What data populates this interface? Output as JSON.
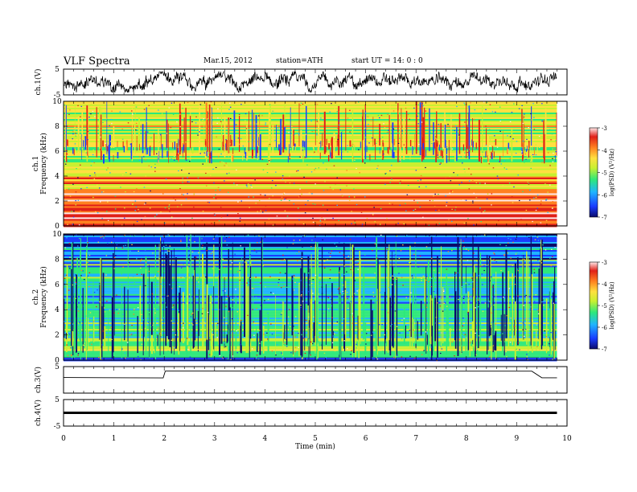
{
  "header": {
    "title": "VLF  Spectra",
    "date": "Mar.15, 2012",
    "station": "station=ATH",
    "start": "start  UT  =    14: 0  : 0"
  },
  "chart_data": [
    {
      "type": "line",
      "panel": "ch1-waveform",
      "ylabel": "ch.1(V)",
      "ylim": [
        -5,
        5
      ],
      "yticks": [
        "5",
        "-5"
      ],
      "x_range_min": [
        0,
        9.8
      ],
      "description_series": "dense noisy black waveform oscillating about 0 V with amplitude roughly 3 V",
      "series": [
        {
          "values_envelope": [
            -3,
            3
          ]
        }
      ]
    },
    {
      "type": "heatmap",
      "panel": "ch1-spectrogram",
      "ylabel": "ch.1\nFrequency (kHz)",
      "ylabel_channel": "ch.1",
      "ylabel_freq": "Frequency (kHz)",
      "ylim": [
        0,
        10
      ],
      "yticks": [
        "0",
        "2",
        "4",
        "6",
        "8",
        "10"
      ],
      "colorbar": {
        "label": "log(PSD) (V²/Hz)",
        "ticks": [
          "-3",
          "-4",
          "-5",
          "-6",
          "-7"
        ],
        "range": [
          -7,
          -3
        ]
      },
      "bands": [
        {
          "from": 0,
          "to": 0.3,
          "level": -3.2
        },
        {
          "from": 0.3,
          "to": 1.2,
          "level": -3.5
        },
        {
          "from": 1.2,
          "to": 3.0,
          "level": -3.6
        },
        {
          "from": 3.0,
          "to": 4.0,
          "level": -4.3
        },
        {
          "from": 4.0,
          "to": 5.0,
          "level": -4.6
        },
        {
          "from": 5.0,
          "to": 6.0,
          "level": -4.9
        },
        {
          "from": 6.0,
          "to": 8.0,
          "level": -5.0
        },
        {
          "from": 8.0,
          "to": 10.0,
          "level": -4.8
        }
      ]
    },
    {
      "type": "heatmap",
      "panel": "ch2-spectrogram",
      "ylabel_channel": "ch.2",
      "ylabel_freq": "Frequency (kHz)",
      "ylim": [
        0,
        10
      ],
      "yticks": [
        "0",
        "2",
        "4",
        "6",
        "8",
        "10"
      ],
      "colorbar": {
        "label": "log(PSD) (V²/Hz)",
        "ticks": [
          "-3",
          "-4",
          "-5",
          "-6",
          "-7"
        ],
        "range": [
          -7,
          -3
        ]
      },
      "bands": [
        {
          "from": 0,
          "to": 0.3,
          "level": -7.0
        },
        {
          "from": 0.3,
          "to": 2.0,
          "level": -5.2
        },
        {
          "from": 2.0,
          "to": 4.0,
          "level": -5.4
        },
        {
          "from": 4.0,
          "to": 6.0,
          "level": -5.9
        },
        {
          "from": 6.0,
          "to": 8.0,
          "level": -5.7
        },
        {
          "from": 8.0,
          "to": 10.0,
          "level": -6.2
        }
      ]
    },
    {
      "type": "line",
      "panel": "ch3-waveform",
      "ylabel": "ch.3(V)",
      "ylim": [
        -5,
        5
      ],
      "yticks": [
        "5"
      ],
      "x": [
        0,
        1.98,
        2.02,
        9.3,
        9.5,
        9.8
      ],
      "values": [
        0.8,
        0.8,
        3.2,
        3.2,
        0.8,
        0.8
      ]
    },
    {
      "type": "line",
      "panel": "ch4-waveform",
      "ylabel": "ch.4(V)",
      "ylim": [
        -5,
        5
      ],
      "yticks": [
        "5",
        "-5"
      ],
      "x": [
        0,
        9.8
      ],
      "values": [
        0,
        0
      ]
    }
  ],
  "xaxis": {
    "label": "Time  (min)",
    "ticks": [
      "0",
      "1",
      "2",
      "3",
      "4",
      "5",
      "6",
      "7",
      "8",
      "9",
      "10"
    ],
    "xlim": [
      0,
      10
    ],
    "data_end": 9.8
  },
  "colors": {
    "colormap": [
      "#0a0a6a",
      "#1a3cff",
      "#1fb4ff",
      "#2ee87a",
      "#c8f030",
      "#ffe040",
      "#ff8020",
      "#e02018",
      "#ffe8e8"
    ]
  }
}
